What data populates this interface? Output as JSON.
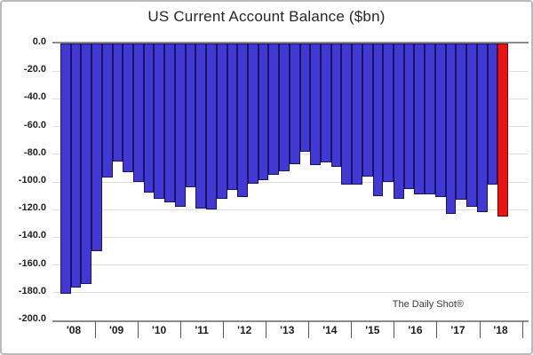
{
  "title": "US Current Account Balance ($bn)",
  "watermark": "The Daily Shot®",
  "chart_data": {
    "type": "bar",
    "title": "US Current Account Balance ($bn)",
    "unit": "$bn",
    "ylim": [
      -200,
      0
    ],
    "grid": true,
    "gridline_step": 20,
    "legend": "none",
    "y_tick_labels": [
      "0.0",
      "-20.0",
      "-40.0",
      "-60.0",
      "-80.0",
      "-100.0",
      "-120.0",
      "-140.0",
      "-160.0",
      "-180.0",
      "-200.0"
    ],
    "x_year_labels": [
      "'08",
      "'09",
      "'10",
      "'11",
      "'12",
      "'13",
      "'14",
      "'15",
      "'16",
      "'17",
      "'18"
    ],
    "series": [
      {
        "year": "'08",
        "values": [
          -181,
          -176,
          -174,
          -150
        ]
      },
      {
        "year": "'09",
        "values": [
          -97,
          -85,
          -93,
          -100
        ]
      },
      {
        "year": "'10",
        "values": [
          -108,
          -112,
          -115,
          -118
        ]
      },
      {
        "year": "'11",
        "values": [
          -104,
          -119,
          -120,
          -112
        ]
      },
      {
        "year": "'12",
        "values": [
          -106,
          -111,
          -101,
          -99
        ]
      },
      {
        "year": "'13",
        "values": [
          -95,
          -92,
          -87,
          -78
        ]
      },
      {
        "year": "'14",
        "values": [
          -88,
          -86,
          -89,
          -102
        ]
      },
      {
        "year": "'15",
        "values": [
          -102,
          -96,
          -110,
          -100
        ]
      },
      {
        "year": "'16",
        "values": [
          -112,
          -105,
          -109,
          -109
        ]
      },
      {
        "year": "'17",
        "values": [
          -111,
          -123,
          -113,
          -118
        ]
      },
      {
        "year": "'18",
        "values": [
          -122,
          -102,
          -125
        ]
      }
    ],
    "highlight_last_bar": true,
    "colors": {
      "bar_fill": "#4238d4",
      "bar_border": "#1b1464",
      "highlight_fill": "#ee1111",
      "highlight_border": "#640808",
      "gridline": "#dedede",
      "axis_line": "#8c8c8c",
      "text": "#222222"
    }
  }
}
